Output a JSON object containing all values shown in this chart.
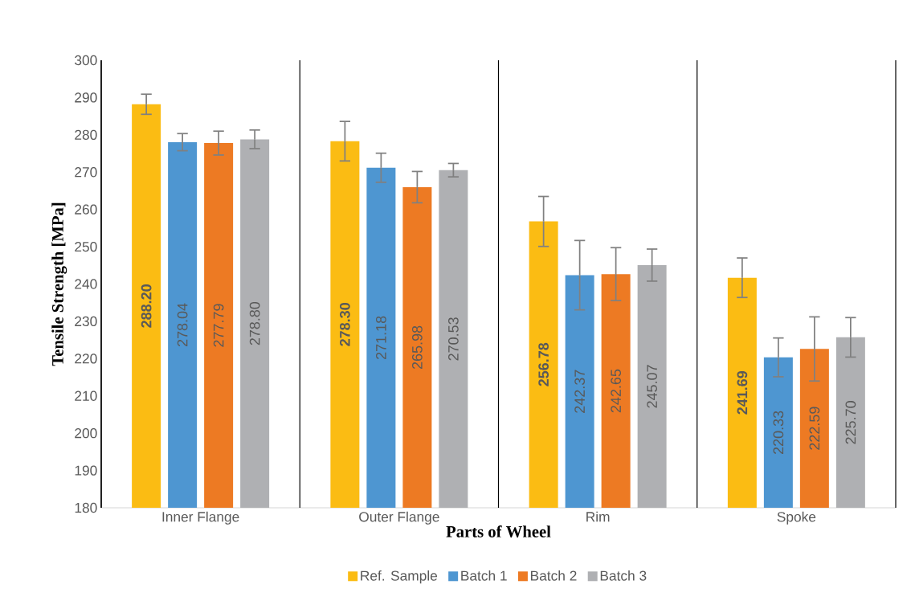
{
  "chart_data": {
    "type": "bar",
    "xlabel": "Parts of Wheel",
    "ylabel": "Tensile Strength [MPa]",
    "categories": [
      "Inner Flange",
      "Outer Flange",
      "Rim",
      "Spoke"
    ],
    "ylim": [
      180,
      300
    ],
    "yticks": [
      180,
      190,
      200,
      210,
      220,
      230,
      240,
      250,
      260,
      270,
      280,
      290,
      300
    ],
    "grid": "x",
    "legend": "bottom",
    "series": [
      {
        "name": "Ref. Sample",
        "color": "#fbbc13",
        "values": [
          288.2,
          278.3,
          256.78,
          241.69
        ],
        "errors": [
          2.7,
          5.3,
          6.7,
          5.3
        ],
        "value_labels": [
          "**288.20**",
          "**278.30**",
          "**256.78**",
          "**241.69**"
        ]
      },
      {
        "name": "Batch 1",
        "color": "#4e96d1",
        "values": [
          278.04,
          271.18,
          242.37,
          220.33
        ],
        "errors": [
          2.3,
          3.9,
          9.3,
          5.2
        ],
        "value_labels": [
          "278.04",
          "271.18",
          "242.37",
          "220.33"
        ]
      },
      {
        "name": "Batch 2",
        "color": "#ed7a23",
        "values": [
          277.79,
          265.98,
          242.65,
          222.59
        ],
        "errors": [
          3.2,
          4.2,
          7.1,
          8.6
        ],
        "value_labels": [
          "277.79",
          "265.98",
          "242.65",
          "222.59"
        ]
      },
      {
        "name": "Batch 3",
        "color": "#afb0b3",
        "values": [
          278.8,
          270.53,
          245.07,
          225.7
        ],
        "errors": [
          2.5,
          1.8,
          4.3,
          5.3
        ],
        "value_labels": [
          "278.80",
          "270.53",
          "245.07",
          "225.70"
        ]
      }
    ]
  }
}
